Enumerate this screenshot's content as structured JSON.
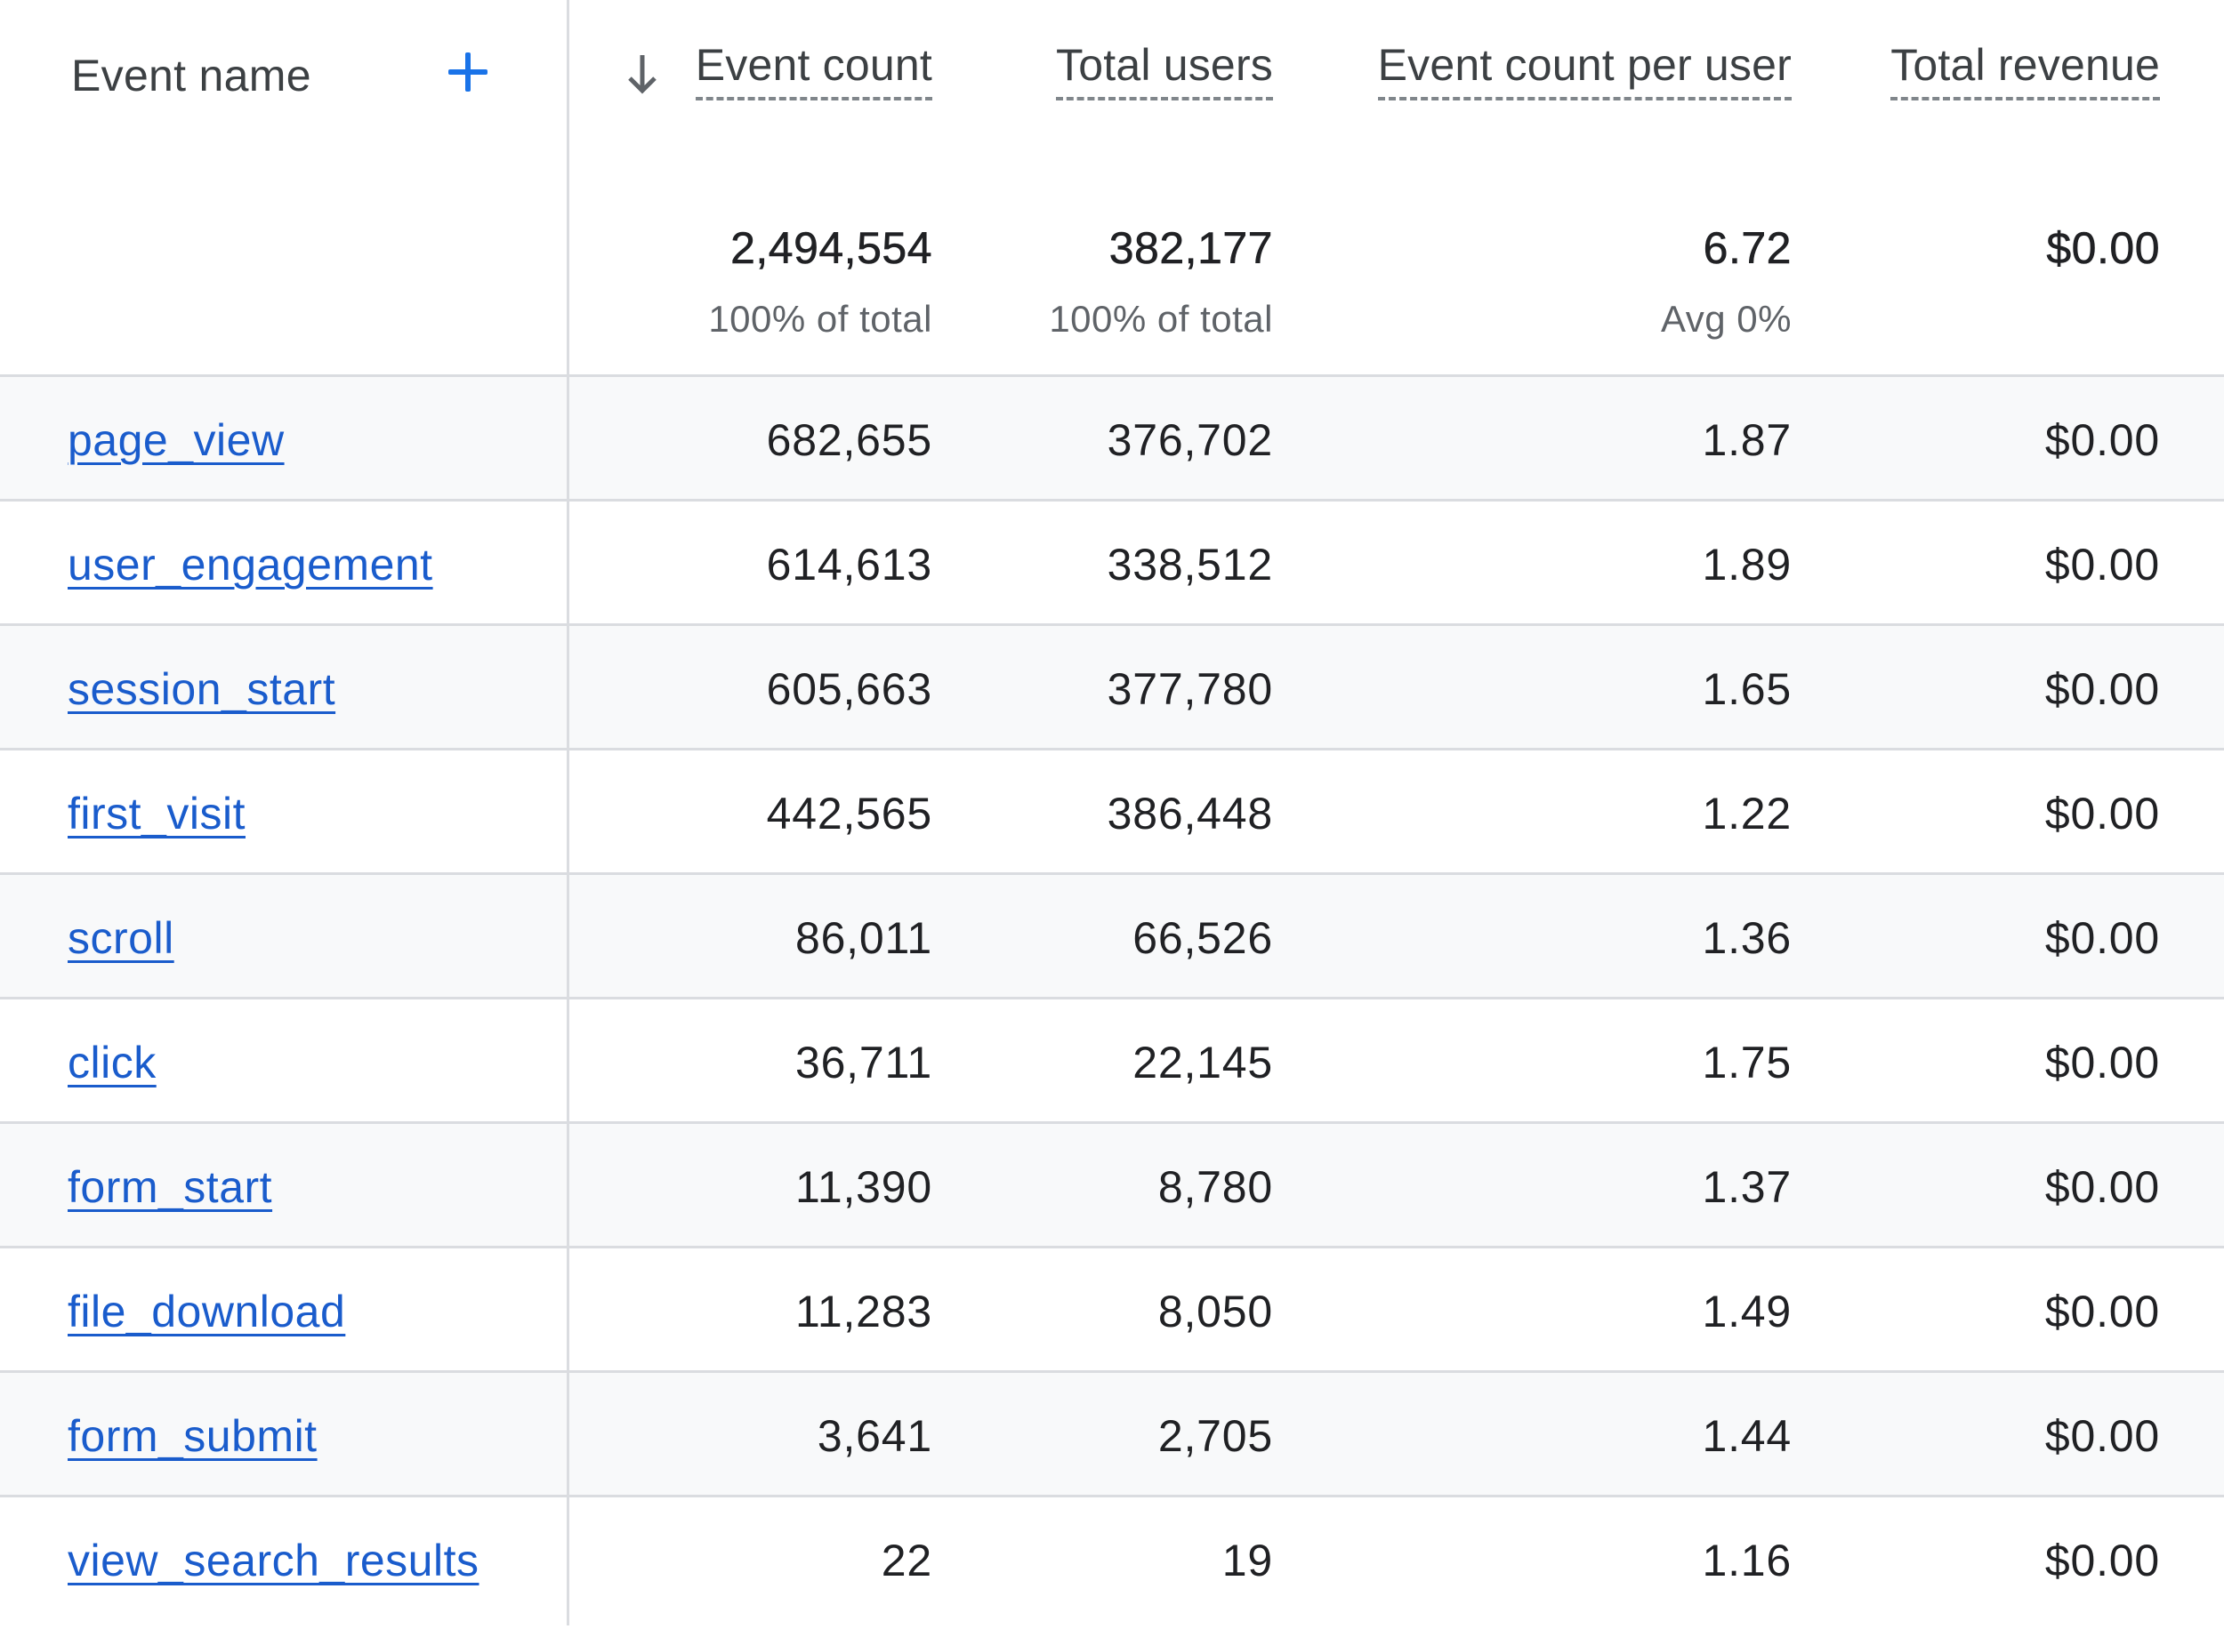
{
  "header": {
    "dimension_label": "Event name",
    "columns": [
      {
        "label": "Event count",
        "sorted": "descending"
      },
      {
        "label": "Total users"
      },
      {
        "label": "Event count per user"
      },
      {
        "label": "Total revenue"
      }
    ]
  },
  "totals": {
    "event_count": "2,494,554",
    "event_count_sub": "100% of total",
    "total_users": "382,177",
    "total_users_sub": "100% of total",
    "per_user": "6.72",
    "per_user_sub": "Avg 0%",
    "revenue": "$0.00"
  },
  "rows": [
    {
      "name": "page_view",
      "event_count": "682,655",
      "total_users": "376,702",
      "per_user": "1.87",
      "revenue": "$0.00"
    },
    {
      "name": "user_engagement",
      "event_count": "614,613",
      "total_users": "338,512",
      "per_user": "1.89",
      "revenue": "$0.00"
    },
    {
      "name": "session_start",
      "event_count": "605,663",
      "total_users": "377,780",
      "per_user": "1.65",
      "revenue": "$0.00"
    },
    {
      "name": "first_visit",
      "event_count": "442,565",
      "total_users": "386,448",
      "per_user": "1.22",
      "revenue": "$0.00"
    },
    {
      "name": "scroll",
      "event_count": "86,011",
      "total_users": "66,526",
      "per_user": "1.36",
      "revenue": "$0.00"
    },
    {
      "name": "click",
      "event_count": "36,711",
      "total_users": "22,145",
      "per_user": "1.75",
      "revenue": "$0.00"
    },
    {
      "name": "form_start",
      "event_count": "11,390",
      "total_users": "8,780",
      "per_user": "1.37",
      "revenue": "$0.00"
    },
    {
      "name": "file_download",
      "event_count": "11,283",
      "total_users": "8,050",
      "per_user": "1.49",
      "revenue": "$0.00"
    },
    {
      "name": "form_submit",
      "event_count": "3,641",
      "total_users": "2,705",
      "per_user": "1.44",
      "revenue": "$0.00"
    },
    {
      "name": "view_search_results",
      "event_count": "22",
      "total_users": "19",
      "per_user": "1.16",
      "revenue": "$0.00"
    }
  ],
  "icons": {
    "add_dimension": "plus-icon",
    "sort": "arrow-down-icon"
  },
  "colors": {
    "link": "#1a5ccc",
    "accent": "#1a73e8",
    "alt_row": "#f8f9fa",
    "border": "#dadce0"
  }
}
